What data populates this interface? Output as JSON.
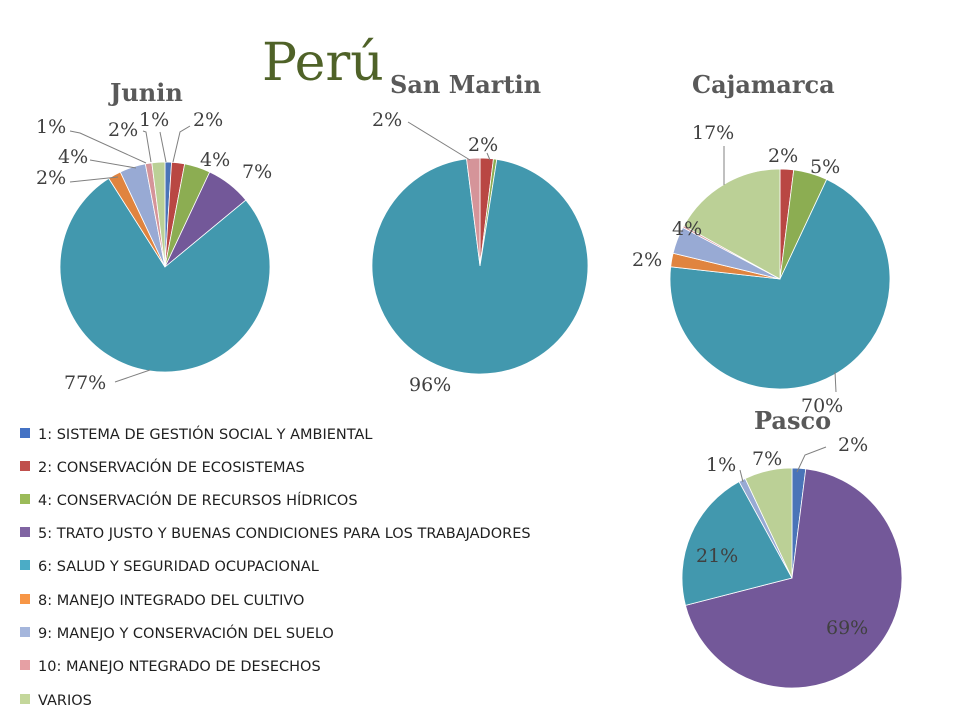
{
  "page_title": "Perú",
  "legend": [
    {
      "label": "1: SISTEMA DE GESTIÓN SOCIAL Y AMBIENTAL",
      "color": "#4472c4"
    },
    {
      "label": "2: CONSERVACIÓN DE ECOSISTEMAS",
      "color": "#c0504d"
    },
    {
      "label": "4: CONSERVACIÓN DE RECURSOS HÍDRICOS",
      "color": "#9bbb59"
    },
    {
      "label": "5: TRATO JUSTO Y BUENAS CONDICIONES PARA LOS TRABAJADORES",
      "color": "#8064a2"
    },
    {
      "label": "6: SALUD Y SEGURIDAD OCUPACIONAL",
      "color": "#4bacc6"
    },
    {
      "label": "8: MANEJO INTEGRADO DEL CULTIVO",
      "color": "#f79646"
    },
    {
      "label": "9: MANEJO Y CONSERVACIÓN DEL SUELO",
      "color": "#a5b6dc"
    },
    {
      "label": "10: MANEJO NTEGRADO DE DESECHOS",
      "color": "#e6a0a4"
    },
    {
      "label": "VARIOS",
      "color": "#c4d79b"
    }
  ],
  "slice_colors": [
    "#4a74b8",
    "#b94743",
    "#8cad52",
    "#735899",
    "#4298ae",
    "#e0843f",
    "#98aad4",
    "#d59499",
    "#bbd096"
  ],
  "chart_data": [
    {
      "type": "pie",
      "title": "Junin",
      "categories": [
        "1",
        "2",
        "4",
        "5",
        "6",
        "8",
        "9",
        "10",
        "VARIOS"
      ],
      "values": [
        1,
        2,
        4,
        7,
        77,
        2,
        4,
        1,
        2
      ],
      "labels": [
        "1%",
        "2%",
        "4%",
        "7%",
        "77%",
        "2%",
        "4%",
        "1%",
        "2%"
      ]
    },
    {
      "type": "pie",
      "title": "San Martin",
      "categories": [
        "2",
        "4",
        "6",
        "10"
      ],
      "values": [
        2,
        0.5,
        96,
        2
      ],
      "labels": [
        "2%",
        "96%",
        "2%"
      ]
    },
    {
      "type": "pie",
      "title": "Cajamarca",
      "categories": [
        "2",
        "4",
        "6",
        "8",
        "9",
        "10",
        "VARIOS"
      ],
      "values": [
        2,
        5,
        70,
        2,
        4,
        0.3,
        17
      ],
      "labels": [
        "2%",
        "5%",
        "70%",
        "2%",
        "4%",
        "17%"
      ]
    },
    {
      "type": "pie",
      "title": "Pasco",
      "categories": [
        "1",
        "5",
        "6",
        "9",
        "VARIOS"
      ],
      "values": [
        2,
        69,
        21,
        1,
        7
      ],
      "labels": [
        "2%",
        "69%",
        "21%",
        "1%",
        "7%"
      ]
    }
  ]
}
